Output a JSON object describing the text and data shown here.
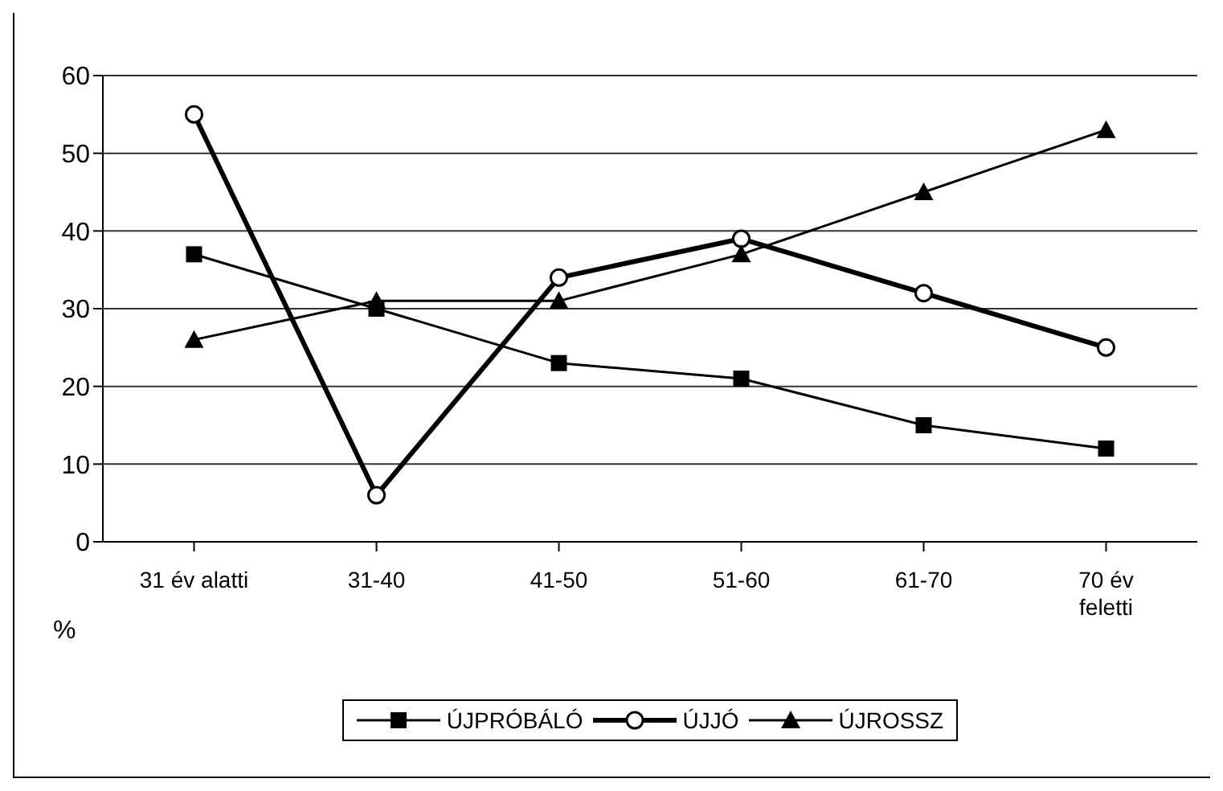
{
  "chart_data": {
    "type": "line",
    "ylabel": "%",
    "categories": [
      "31 év alatti",
      "31-40",
      "41-50",
      "51-60",
      "61-70",
      "70 év feletti"
    ],
    "series": [
      {
        "name": "ÚJPRÓBÁLÓ",
        "color": "#000000",
        "marker": "square",
        "values": [
          37,
          30,
          23,
          21,
          15,
          12
        ]
      },
      {
        "name": "ÚJJÓ",
        "color": "#000000",
        "marker": "circle",
        "values": [
          55,
          6,
          34,
          39,
          32,
          25
        ]
      },
      {
        "name": "ÚJROSSZ",
        "color": "#000000",
        "marker": "triangle",
        "values": [
          26,
          31,
          31,
          37,
          45,
          53
        ]
      }
    ],
    "ylim": [
      0,
      60
    ],
    "yticks": [
      0,
      10,
      20,
      30,
      40,
      50,
      60
    ],
    "grid": "y",
    "legend": "bottom",
    "line_style": "solid"
  }
}
